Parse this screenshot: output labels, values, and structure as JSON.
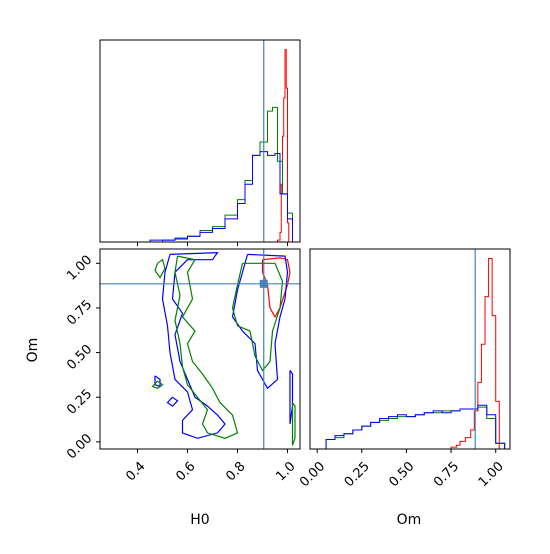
{
  "chart_data": {
    "type": "corner",
    "truth": {
      "H0": 0.905,
      "Om": 0.885
    },
    "truth_color": "#4682b4",
    "series_colors": {
      "red": "#ff0000",
      "green": "#008000",
      "blue": "#0000ff"
    },
    "panels": {
      "H0_marginal": {
        "type": "histogram",
        "xlim": [
          0.25,
          1.05
        ],
        "x_ticks": [
          "0.4",
          "0.6",
          "0.8",
          "1.0"
        ],
        "series": [
          {
            "color": "red",
            "bins": [
              [
                0.95,
                0
              ],
              [
                0.96,
                0.01
              ],
              [
                0.97,
                0.05
              ],
              [
                0.975,
                0.3
              ],
              [
                0.98,
                0.55
              ],
              [
                0.985,
                0.75
              ],
              [
                0.99,
                1.0
              ],
              [
                0.995,
                0.8
              ],
              [
                1.0,
                0.1
              ],
              [
                1.005,
                0
              ]
            ]
          },
          {
            "color": "green",
            "bins": [
              [
                0.45,
                0
              ],
              [
                0.5,
                0.01
              ],
              [
                0.55,
                0.015
              ],
              [
                0.6,
                0.03
              ],
              [
                0.65,
                0.06
              ],
              [
                0.7,
                0.08
              ],
              [
                0.75,
                0.14
              ],
              [
                0.8,
                0.22
              ],
              [
                0.83,
                0.32
              ],
              [
                0.86,
                0.45
              ],
              [
                0.89,
                0.52
              ],
              [
                0.92,
                0.68
              ],
              [
                0.94,
                0.7
              ],
              [
                0.96,
                0.42
              ],
              [
                0.98,
                0.25
              ],
              [
                1.0,
                0.15
              ],
              [
                1.02,
                0
              ]
            ]
          },
          {
            "color": "blue",
            "bins": [
              [
                0.4,
                0
              ],
              [
                0.45,
                0.01
              ],
              [
                0.5,
                0.01
              ],
              [
                0.55,
                0.02
              ],
              [
                0.6,
                0.03
              ],
              [
                0.65,
                0.05
              ],
              [
                0.7,
                0.07
              ],
              [
                0.75,
                0.12
              ],
              [
                0.8,
                0.2
              ],
              [
                0.83,
                0.3
              ],
              [
                0.86,
                0.45
              ],
              [
                0.89,
                0.47
              ],
              [
                0.92,
                0.45
              ],
              [
                0.95,
                0.46
              ],
              [
                0.97,
                0.25
              ],
              [
                1.0,
                0.12
              ],
              [
                1.02,
                0
              ]
            ]
          }
        ]
      },
      "joint": {
        "xlim": [
          0.25,
          1.05
        ],
        "ylim": [
          -0.04,
          1.08
        ],
        "x_ticks": [
          "0.4",
          "0.6",
          "0.8",
          "1.0"
        ],
        "y_ticks": [
          "0.00",
          "0.25",
          "0.50",
          "0.75",
          "1.00"
        ],
        "xlabel": "H0",
        "ylabel": "Om",
        "contours": [
          {
            "color": "red",
            "points": [
              [
                0.9,
                1.02
              ],
              [
                0.97,
                1.03
              ],
              [
                1.0,
                1.02
              ],
              [
                1.01,
                0.95
              ],
              [
                1.0,
                0.88
              ],
              [
                0.97,
                0.75
              ],
              [
                0.95,
                0.7
              ],
              [
                0.93,
                0.75
              ],
              [
                0.92,
                0.88
              ],
              [
                0.9,
                0.95
              ],
              [
                0.9,
                1.02
              ]
            ]
          },
          {
            "color": "blue",
            "points": [
              [
                0.84,
                1.05
              ],
              [
                0.99,
                1.04
              ],
              [
                1.0,
                0.95
              ],
              [
                0.99,
                0.8
              ],
              [
                0.97,
                0.7
              ],
              [
                0.95,
                0.55
              ],
              [
                0.96,
                0.35
              ],
              [
                0.92,
                0.3
              ],
              [
                0.88,
                0.4
              ],
              [
                0.87,
                0.55
              ],
              [
                0.82,
                0.62
              ],
              [
                0.78,
                0.7
              ],
              [
                0.8,
                0.85
              ],
              [
                0.84,
                1.05
              ]
            ]
          },
          {
            "color": "green",
            "points": [
              [
                0.82,
                1.0
              ],
              [
                0.95,
                1.0
              ],
              [
                0.98,
                0.9
              ],
              [
                0.97,
                0.75
              ],
              [
                0.94,
                0.62
              ],
              [
                0.93,
                0.45
              ],
              [
                0.9,
                0.4
              ],
              [
                0.87,
                0.48
              ],
              [
                0.85,
                0.62
              ],
              [
                0.8,
                0.65
              ],
              [
                0.78,
                0.75
              ],
              [
                0.8,
                0.88
              ],
              [
                0.82,
                1.0
              ]
            ]
          },
          {
            "color": "blue",
            "points": [
              [
                0.53,
                1.05
              ],
              [
                0.72,
                1.06
              ],
              [
                0.7,
                1.02
              ],
              [
                0.6,
                1.02
              ],
              [
                0.55,
                0.95
              ],
              [
                0.54,
                0.8
              ],
              [
                0.58,
                0.72
              ],
              [
                0.55,
                0.6
              ],
              [
                0.57,
                0.45
              ],
              [
                0.6,
                0.35
              ],
              [
                0.63,
                0.25
              ],
              [
                0.68,
                0.2
              ],
              [
                0.72,
                0.15
              ],
              [
                0.75,
                0.1
              ],
              [
                0.72,
                0.05
              ],
              [
                0.64,
                0.02
              ],
              [
                0.58,
                0.05
              ],
              [
                0.58,
                0.12
              ],
              [
                0.62,
                0.18
              ],
              [
                0.6,
                0.28
              ],
              [
                0.55,
                0.35
              ],
              [
                0.53,
                0.5
              ],
              [
                0.52,
                0.65
              ],
              [
                0.5,
                0.8
              ],
              [
                0.51,
                0.95
              ],
              [
                0.53,
                1.05
              ]
            ]
          },
          {
            "color": "green",
            "points": [
              [
                0.56,
                1.04
              ],
              [
                0.63,
                1.02
              ],
              [
                0.6,
                0.95
              ],
              [
                0.62,
                0.8
              ],
              [
                0.58,
                0.7
              ],
              [
                0.63,
                0.62
              ],
              [
                0.6,
                0.55
              ],
              [
                0.62,
                0.45
              ],
              [
                0.66,
                0.38
              ],
              [
                0.7,
                0.3
              ],
              [
                0.73,
                0.22
              ],
              [
                0.78,
                0.15
              ],
              [
                0.8,
                0.05
              ],
              [
                0.75,
                0.02
              ],
              [
                0.68,
                0.05
              ],
              [
                0.66,
                0.1
              ],
              [
                0.68,
                0.18
              ],
              [
                0.64,
                0.25
              ],
              [
                0.6,
                0.32
              ],
              [
                0.58,
                0.42
              ],
              [
                0.57,
                0.55
              ],
              [
                0.55,
                0.68
              ],
              [
                0.57,
                0.82
              ],
              [
                0.55,
                0.95
              ],
              [
                0.56,
                1.04
              ]
            ]
          },
          {
            "color": "green",
            "points": [
              [
                0.48,
                1.0
              ],
              [
                0.5,
                1.02
              ],
              [
                0.51,
                0.97
              ],
              [
                0.49,
                0.92
              ],
              [
                0.47,
                0.96
              ],
              [
                0.48,
                1.0
              ]
            ]
          },
          {
            "color": "blue",
            "points": [
              [
                0.47,
                0.37
              ],
              [
                0.49,
                0.35
              ],
              [
                0.49,
                0.31
              ],
              [
                0.47,
                0.32
              ],
              [
                0.47,
                0.37
              ]
            ]
          },
          {
            "color": "green",
            "points": [
              [
                0.48,
                0.34
              ],
              [
                0.5,
                0.32
              ],
              [
                0.48,
                0.3
              ],
              [
                0.46,
                0.31
              ],
              [
                0.48,
                0.34
              ]
            ]
          },
          {
            "color": "blue",
            "points": [
              [
                0.54,
                0.25
              ],
              [
                0.56,
                0.23
              ],
              [
                0.54,
                0.2
              ],
              [
                0.52,
                0.22
              ],
              [
                0.54,
                0.25
              ]
            ]
          },
          {
            "color": "blue",
            "points": [
              [
                1.01,
                0.4
              ],
              [
                1.02,
                0.38
              ],
              [
                1.02,
                0.2
              ],
              [
                1.01,
                0.1
              ],
              [
                1.01,
                0.4
              ]
            ]
          },
          {
            "color": "green",
            "points": [
              [
                1.02,
                0.22
              ],
              [
                1.03,
                0.2
              ],
              [
                1.03,
                0.02
              ],
              [
                1.02,
                -0.02
              ],
              [
                1.02,
                0.22
              ]
            ]
          }
        ]
      },
      "Om_marginal": {
        "type": "histogram",
        "xlim": [
          -0.04,
          1.08
        ],
        "x_ticks": [
          "0.00",
          "0.25",
          "0.50",
          "0.75",
          "1.00"
        ],
        "xlabel": "Om",
        "series": [
          {
            "color": "red",
            "bins": [
              [
                0.72,
                0
              ],
              [
                0.75,
                0.01
              ],
              [
                0.78,
                0.02
              ],
              [
                0.8,
                0.04
              ],
              [
                0.83,
                0.06
              ],
              [
                0.86,
                0.1
              ],
              [
                0.88,
                0.2
              ],
              [
                0.9,
                0.35
              ],
              [
                0.92,
                0.55
              ],
              [
                0.94,
                0.8
              ],
              [
                0.96,
                1.0
              ],
              [
                0.98,
                0.7
              ],
              [
                1.0,
                0.25
              ],
              [
                1.02,
                0
              ]
            ]
          },
          {
            "color": "green",
            "bins": [
              [
                0.0,
                0
              ],
              [
                0.05,
                0.05
              ],
              [
                0.1,
                0.06
              ],
              [
                0.15,
                0.08
              ],
              [
                0.2,
                0.1
              ],
              [
                0.25,
                0.12
              ],
              [
                0.3,
                0.14
              ],
              [
                0.35,
                0.15
              ],
              [
                0.4,
                0.16
              ],
              [
                0.45,
                0.17
              ],
              [
                0.5,
                0.17
              ],
              [
                0.55,
                0.18
              ],
              [
                0.6,
                0.19
              ],
              [
                0.65,
                0.19
              ],
              [
                0.7,
                0.2
              ],
              [
                0.75,
                0.2
              ],
              [
                0.8,
                0.21
              ],
              [
                0.85,
                0.21
              ],
              [
                0.9,
                0.22
              ],
              [
                0.95,
                0.16
              ],
              [
                1.0,
                0.03
              ],
              [
                1.05,
                0
              ]
            ]
          },
          {
            "color": "blue",
            "bins": [
              [
                0.0,
                0
              ],
              [
                0.05,
                0.05
              ],
              [
                0.1,
                0.07
              ],
              [
                0.15,
                0.08
              ],
              [
                0.2,
                0.1
              ],
              [
                0.25,
                0.12
              ],
              [
                0.3,
                0.14
              ],
              [
                0.35,
                0.16
              ],
              [
                0.4,
                0.17
              ],
              [
                0.45,
                0.18
              ],
              [
                0.5,
                0.17
              ],
              [
                0.55,
                0.18
              ],
              [
                0.6,
                0.19
              ],
              [
                0.65,
                0.2
              ],
              [
                0.7,
                0.19
              ],
              [
                0.75,
                0.2
              ],
              [
                0.8,
                0.21
              ],
              [
                0.85,
                0.21
              ],
              [
                0.9,
                0.23
              ],
              [
                0.95,
                0.18
              ],
              [
                1.0,
                0.03
              ],
              [
                1.05,
                0
              ]
            ]
          }
        ]
      }
    }
  }
}
